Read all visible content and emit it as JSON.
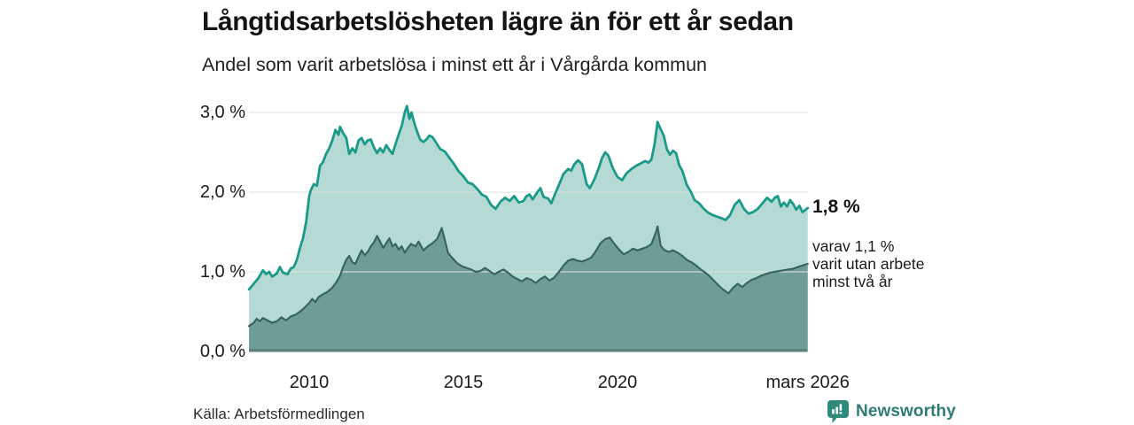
{
  "header": {
    "title": "Långtidsarbetslösheten lägre än för ett år sedan",
    "subtitle": "Andel som varit arbetslösa i minst ett år i Vårgårda kommun"
  },
  "chart_data": {
    "type": "area",
    "title": "Långtidsarbetslösheten lägre än för ett år sedan",
    "subtitle": "Andel som varit arbetslösa i minst ett år i Vårgårda kommun",
    "unit": "%",
    "grid": "horizontal",
    "grid_color": "#e1e1e1",
    "baseline_color": "#5c837d",
    "x_axis": {
      "range": [
        2008.05,
        2026.17
      ],
      "ticks": [
        {
          "value": 2010,
          "label": "2010"
        },
        {
          "value": 2015,
          "label": "2015"
        },
        {
          "value": 2020,
          "label": "2020"
        },
        {
          "value": 2026.17,
          "label": "mars 2026"
        }
      ]
    },
    "y_axis": {
      "range": [
        0,
        3.2
      ],
      "ticks": [
        {
          "value": 0,
          "label": "0,0 %"
        },
        {
          "value": 1,
          "label": "1,0 %"
        },
        {
          "value": 2,
          "label": "2,0 %"
        },
        {
          "value": 3,
          "label": "3,0 %"
        }
      ]
    },
    "series": [
      {
        "name": "Andel som varit arbetslösa i minst ett år",
        "line_color": "#1a9b8a",
        "fill_color": "#b5dad4",
        "points": [
          [
            2008.05,
            0.78
          ],
          [
            2008.2,
            0.85
          ],
          [
            2008.35,
            0.92
          ],
          [
            2008.5,
            1.02
          ],
          [
            2008.6,
            0.97
          ],
          [
            2008.7,
            1.0
          ],
          [
            2008.8,
            0.94
          ],
          [
            2008.95,
            0.98
          ],
          [
            2009.05,
            1.06
          ],
          [
            2009.15,
            0.99
          ],
          [
            2009.3,
            0.97
          ],
          [
            2009.4,
            1.04
          ],
          [
            2009.5,
            1.06
          ],
          [
            2009.6,
            1.15
          ],
          [
            2009.7,
            1.3
          ],
          [
            2009.8,
            1.42
          ],
          [
            2009.9,
            1.62
          ],
          [
            2010.0,
            1.95
          ],
          [
            2010.05,
            2.02
          ],
          [
            2010.15,
            2.1
          ],
          [
            2010.25,
            2.08
          ],
          [
            2010.35,
            2.33
          ],
          [
            2010.45,
            2.38
          ],
          [
            2010.55,
            2.48
          ],
          [
            2010.65,
            2.55
          ],
          [
            2010.75,
            2.65
          ],
          [
            2010.85,
            2.78
          ],
          [
            2010.95,
            2.72
          ],
          [
            2011.0,
            2.82
          ],
          [
            2011.1,
            2.74
          ],
          [
            2011.2,
            2.68
          ],
          [
            2011.3,
            2.48
          ],
          [
            2011.4,
            2.55
          ],
          [
            2011.5,
            2.5
          ],
          [
            2011.6,
            2.65
          ],
          [
            2011.7,
            2.68
          ],
          [
            2011.8,
            2.6
          ],
          [
            2011.9,
            2.65
          ],
          [
            2012.0,
            2.66
          ],
          [
            2012.1,
            2.56
          ],
          [
            2012.2,
            2.49
          ],
          [
            2012.3,
            2.55
          ],
          [
            2012.4,
            2.5
          ],
          [
            2012.5,
            2.59
          ],
          [
            2012.6,
            2.53
          ],
          [
            2012.7,
            2.48
          ],
          [
            2012.8,
            2.6
          ],
          [
            2012.9,
            2.72
          ],
          [
            2013.0,
            2.83
          ],
          [
            2013.1,
            3.0
          ],
          [
            2013.17,
            3.08
          ],
          [
            2013.25,
            2.92
          ],
          [
            2013.32,
            3.0
          ],
          [
            2013.4,
            2.88
          ],
          [
            2013.5,
            2.76
          ],
          [
            2013.6,
            2.66
          ],
          [
            2013.7,
            2.63
          ],
          [
            2013.8,
            2.66
          ],
          [
            2013.9,
            2.71
          ],
          [
            2014.0,
            2.69
          ],
          [
            2014.1,
            2.63
          ],
          [
            2014.25,
            2.54
          ],
          [
            2014.4,
            2.51
          ],
          [
            2014.55,
            2.43
          ],
          [
            2014.7,
            2.35
          ],
          [
            2014.85,
            2.26
          ],
          [
            2015.0,
            2.2
          ],
          [
            2015.15,
            2.12
          ],
          [
            2015.3,
            2.1
          ],
          [
            2015.45,
            2.04
          ],
          [
            2015.6,
            1.97
          ],
          [
            2015.75,
            1.94
          ],
          [
            2015.9,
            1.84
          ],
          [
            2016.05,
            1.79
          ],
          [
            2016.2,
            1.88
          ],
          [
            2016.35,
            1.93
          ],
          [
            2016.5,
            1.89
          ],
          [
            2016.65,
            1.95
          ],
          [
            2016.8,
            1.87
          ],
          [
            2016.95,
            1.89
          ],
          [
            2017.05,
            1.95
          ],
          [
            2017.15,
            1.97
          ],
          [
            2017.25,
            1.91
          ],
          [
            2017.4,
            2.0
          ],
          [
            2017.5,
            2.05
          ],
          [
            2017.6,
            1.94
          ],
          [
            2017.75,
            1.92
          ],
          [
            2017.85,
            1.86
          ],
          [
            2018.0,
            2.0
          ],
          [
            2018.1,
            2.09
          ],
          [
            2018.25,
            2.23
          ],
          [
            2018.4,
            2.29
          ],
          [
            2018.5,
            2.27
          ],
          [
            2018.6,
            2.35
          ],
          [
            2018.72,
            2.4
          ],
          [
            2018.85,
            2.35
          ],
          [
            2019.0,
            2.1
          ],
          [
            2019.1,
            2.05
          ],
          [
            2019.25,
            2.16
          ],
          [
            2019.4,
            2.31
          ],
          [
            2019.5,
            2.43
          ],
          [
            2019.6,
            2.5
          ],
          [
            2019.7,
            2.46
          ],
          [
            2019.85,
            2.3
          ],
          [
            2020.0,
            2.19
          ],
          [
            2020.15,
            2.15
          ],
          [
            2020.3,
            2.24
          ],
          [
            2020.45,
            2.29
          ],
          [
            2020.6,
            2.33
          ],
          [
            2020.75,
            2.36
          ],
          [
            2020.9,
            2.39
          ],
          [
            2021.0,
            2.37
          ],
          [
            2021.1,
            2.41
          ],
          [
            2021.2,
            2.6
          ],
          [
            2021.3,
            2.88
          ],
          [
            2021.4,
            2.79
          ],
          [
            2021.5,
            2.71
          ],
          [
            2021.6,
            2.54
          ],
          [
            2021.7,
            2.47
          ],
          [
            2021.8,
            2.52
          ],
          [
            2021.9,
            2.49
          ],
          [
            2022.0,
            2.34
          ],
          [
            2022.1,
            2.27
          ],
          [
            2022.25,
            2.09
          ],
          [
            2022.4,
            1.99
          ],
          [
            2022.5,
            1.9
          ],
          [
            2022.65,
            1.86
          ],
          [
            2022.8,
            1.79
          ],
          [
            2022.95,
            1.74
          ],
          [
            2023.1,
            1.71
          ],
          [
            2023.25,
            1.69
          ],
          [
            2023.4,
            1.67
          ],
          [
            2023.5,
            1.65
          ],
          [
            2023.65,
            1.71
          ],
          [
            2023.8,
            1.84
          ],
          [
            2023.95,
            1.9
          ],
          [
            2024.1,
            1.79
          ],
          [
            2024.25,
            1.73
          ],
          [
            2024.4,
            1.75
          ],
          [
            2024.55,
            1.79
          ],
          [
            2024.7,
            1.86
          ],
          [
            2024.85,
            1.93
          ],
          [
            2025.0,
            1.88
          ],
          [
            2025.1,
            1.93
          ],
          [
            2025.2,
            1.95
          ],
          [
            2025.3,
            1.82
          ],
          [
            2025.4,
            1.87
          ],
          [
            2025.5,
            1.82
          ],
          [
            2025.6,
            1.9
          ],
          [
            2025.7,
            1.85
          ],
          [
            2025.8,
            1.78
          ],
          [
            2025.9,
            1.83
          ],
          [
            2026.0,
            1.75
          ],
          [
            2026.17,
            1.8
          ]
        ]
      },
      {
        "name": "varav utan arbete minst två år",
        "line_color": "#37655f",
        "fill_color": "#6f9c95",
        "points": [
          [
            2008.05,
            0.32
          ],
          [
            2008.2,
            0.36
          ],
          [
            2008.3,
            0.41
          ],
          [
            2008.4,
            0.38
          ],
          [
            2008.5,
            0.42
          ],
          [
            2008.65,
            0.39
          ],
          [
            2008.8,
            0.36
          ],
          [
            2008.95,
            0.38
          ],
          [
            2009.1,
            0.43
          ],
          [
            2009.25,
            0.39
          ],
          [
            2009.4,
            0.44
          ],
          [
            2009.55,
            0.46
          ],
          [
            2009.7,
            0.5
          ],
          [
            2009.85,
            0.55
          ],
          [
            2010.0,
            0.61
          ],
          [
            2010.1,
            0.66
          ],
          [
            2010.2,
            0.62
          ],
          [
            2010.3,
            0.68
          ],
          [
            2010.45,
            0.72
          ],
          [
            2010.6,
            0.75
          ],
          [
            2010.75,
            0.8
          ],
          [
            2010.9,
            0.88
          ],
          [
            2011.0,
            0.95
          ],
          [
            2011.1,
            1.06
          ],
          [
            2011.2,
            1.15
          ],
          [
            2011.3,
            1.2
          ],
          [
            2011.4,
            1.12
          ],
          [
            2011.5,
            1.1
          ],
          [
            2011.6,
            1.19
          ],
          [
            2011.7,
            1.27
          ],
          [
            2011.8,
            1.21
          ],
          [
            2011.9,
            1.25
          ],
          [
            2012.0,
            1.32
          ],
          [
            2012.1,
            1.37
          ],
          [
            2012.2,
            1.45
          ],
          [
            2012.3,
            1.38
          ],
          [
            2012.4,
            1.3
          ],
          [
            2012.5,
            1.36
          ],
          [
            2012.6,
            1.42
          ],
          [
            2012.7,
            1.32
          ],
          [
            2012.8,
            1.35
          ],
          [
            2012.9,
            1.28
          ],
          [
            2013.0,
            1.32
          ],
          [
            2013.1,
            1.24
          ],
          [
            2013.2,
            1.3
          ],
          [
            2013.3,
            1.35
          ],
          [
            2013.45,
            1.32
          ],
          [
            2013.55,
            1.38
          ],
          [
            2013.7,
            1.27
          ],
          [
            2013.85,
            1.32
          ],
          [
            2014.0,
            1.36
          ],
          [
            2014.15,
            1.41
          ],
          [
            2014.3,
            1.55
          ],
          [
            2014.4,
            1.4
          ],
          [
            2014.5,
            1.24
          ],
          [
            2014.65,
            1.17
          ],
          [
            2014.8,
            1.11
          ],
          [
            2014.95,
            1.07
          ],
          [
            2015.1,
            1.05
          ],
          [
            2015.25,
            1.03
          ],
          [
            2015.4,
            1.0
          ],
          [
            2015.55,
            1.01
          ],
          [
            2015.7,
            1.05
          ],
          [
            2015.85,
            1.01
          ],
          [
            2016.0,
            0.97
          ],
          [
            2016.15,
            1.0
          ],
          [
            2016.3,
            1.03
          ],
          [
            2016.45,
            0.99
          ],
          [
            2016.6,
            0.94
          ],
          [
            2016.75,
            0.91
          ],
          [
            2016.9,
            0.88
          ],
          [
            2017.05,
            0.92
          ],
          [
            2017.2,
            0.9
          ],
          [
            2017.35,
            0.86
          ],
          [
            2017.5,
            0.91
          ],
          [
            2017.65,
            0.94
          ],
          [
            2017.8,
            0.89
          ],
          [
            2017.95,
            0.93
          ],
          [
            2018.1,
            1.0
          ],
          [
            2018.25,
            1.08
          ],
          [
            2018.4,
            1.14
          ],
          [
            2018.55,
            1.16
          ],
          [
            2018.7,
            1.14
          ],
          [
            2018.85,
            1.13
          ],
          [
            2019.0,
            1.15
          ],
          [
            2019.15,
            1.18
          ],
          [
            2019.3,
            1.26
          ],
          [
            2019.45,
            1.36
          ],
          [
            2019.6,
            1.41
          ],
          [
            2019.75,
            1.43
          ],
          [
            2019.9,
            1.35
          ],
          [
            2020.05,
            1.28
          ],
          [
            2020.2,
            1.22
          ],
          [
            2020.35,
            1.25
          ],
          [
            2020.5,
            1.29
          ],
          [
            2020.65,
            1.27
          ],
          [
            2020.8,
            1.29
          ],
          [
            2020.95,
            1.31
          ],
          [
            2021.1,
            1.35
          ],
          [
            2021.25,
            1.5
          ],
          [
            2021.3,
            1.57
          ],
          [
            2021.4,
            1.33
          ],
          [
            2021.5,
            1.28
          ],
          [
            2021.65,
            1.25
          ],
          [
            2021.8,
            1.27
          ],
          [
            2021.95,
            1.24
          ],
          [
            2022.1,
            1.2
          ],
          [
            2022.25,
            1.15
          ],
          [
            2022.4,
            1.12
          ],
          [
            2022.55,
            1.08
          ],
          [
            2022.7,
            1.03
          ],
          [
            2022.85,
            0.99
          ],
          [
            2023.0,
            0.94
          ],
          [
            2023.15,
            0.88
          ],
          [
            2023.3,
            0.82
          ],
          [
            2023.45,
            0.77
          ],
          [
            2023.6,
            0.73
          ],
          [
            2023.75,
            0.8
          ],
          [
            2023.9,
            0.85
          ],
          [
            2024.05,
            0.81
          ],
          [
            2024.2,
            0.86
          ],
          [
            2024.35,
            0.9
          ],
          [
            2024.5,
            0.92
          ],
          [
            2024.65,
            0.95
          ],
          [
            2024.8,
            0.97
          ],
          [
            2024.95,
            0.99
          ],
          [
            2025.1,
            1.0
          ],
          [
            2025.25,
            1.01
          ],
          [
            2025.4,
            1.02
          ],
          [
            2025.55,
            1.03
          ],
          [
            2025.7,
            1.04
          ],
          [
            2025.85,
            1.06
          ],
          [
            2026.0,
            1.08
          ],
          [
            2026.17,
            1.1
          ]
        ]
      }
    ],
    "annotations": [
      {
        "type": "end_value",
        "series": 0,
        "value": 1.8,
        "label": "1,8 %"
      },
      {
        "type": "end_value",
        "series": 1,
        "value": 1.1,
        "label": "varav 1,1 %\nvarit utan arbete\nminst två år"
      }
    ]
  },
  "footer": {
    "source": "Källa: Arbetsförmedlingen",
    "brand": "Newsworthy",
    "brand_color": "#2e7c73",
    "icon_color": "#2f8a7c"
  }
}
